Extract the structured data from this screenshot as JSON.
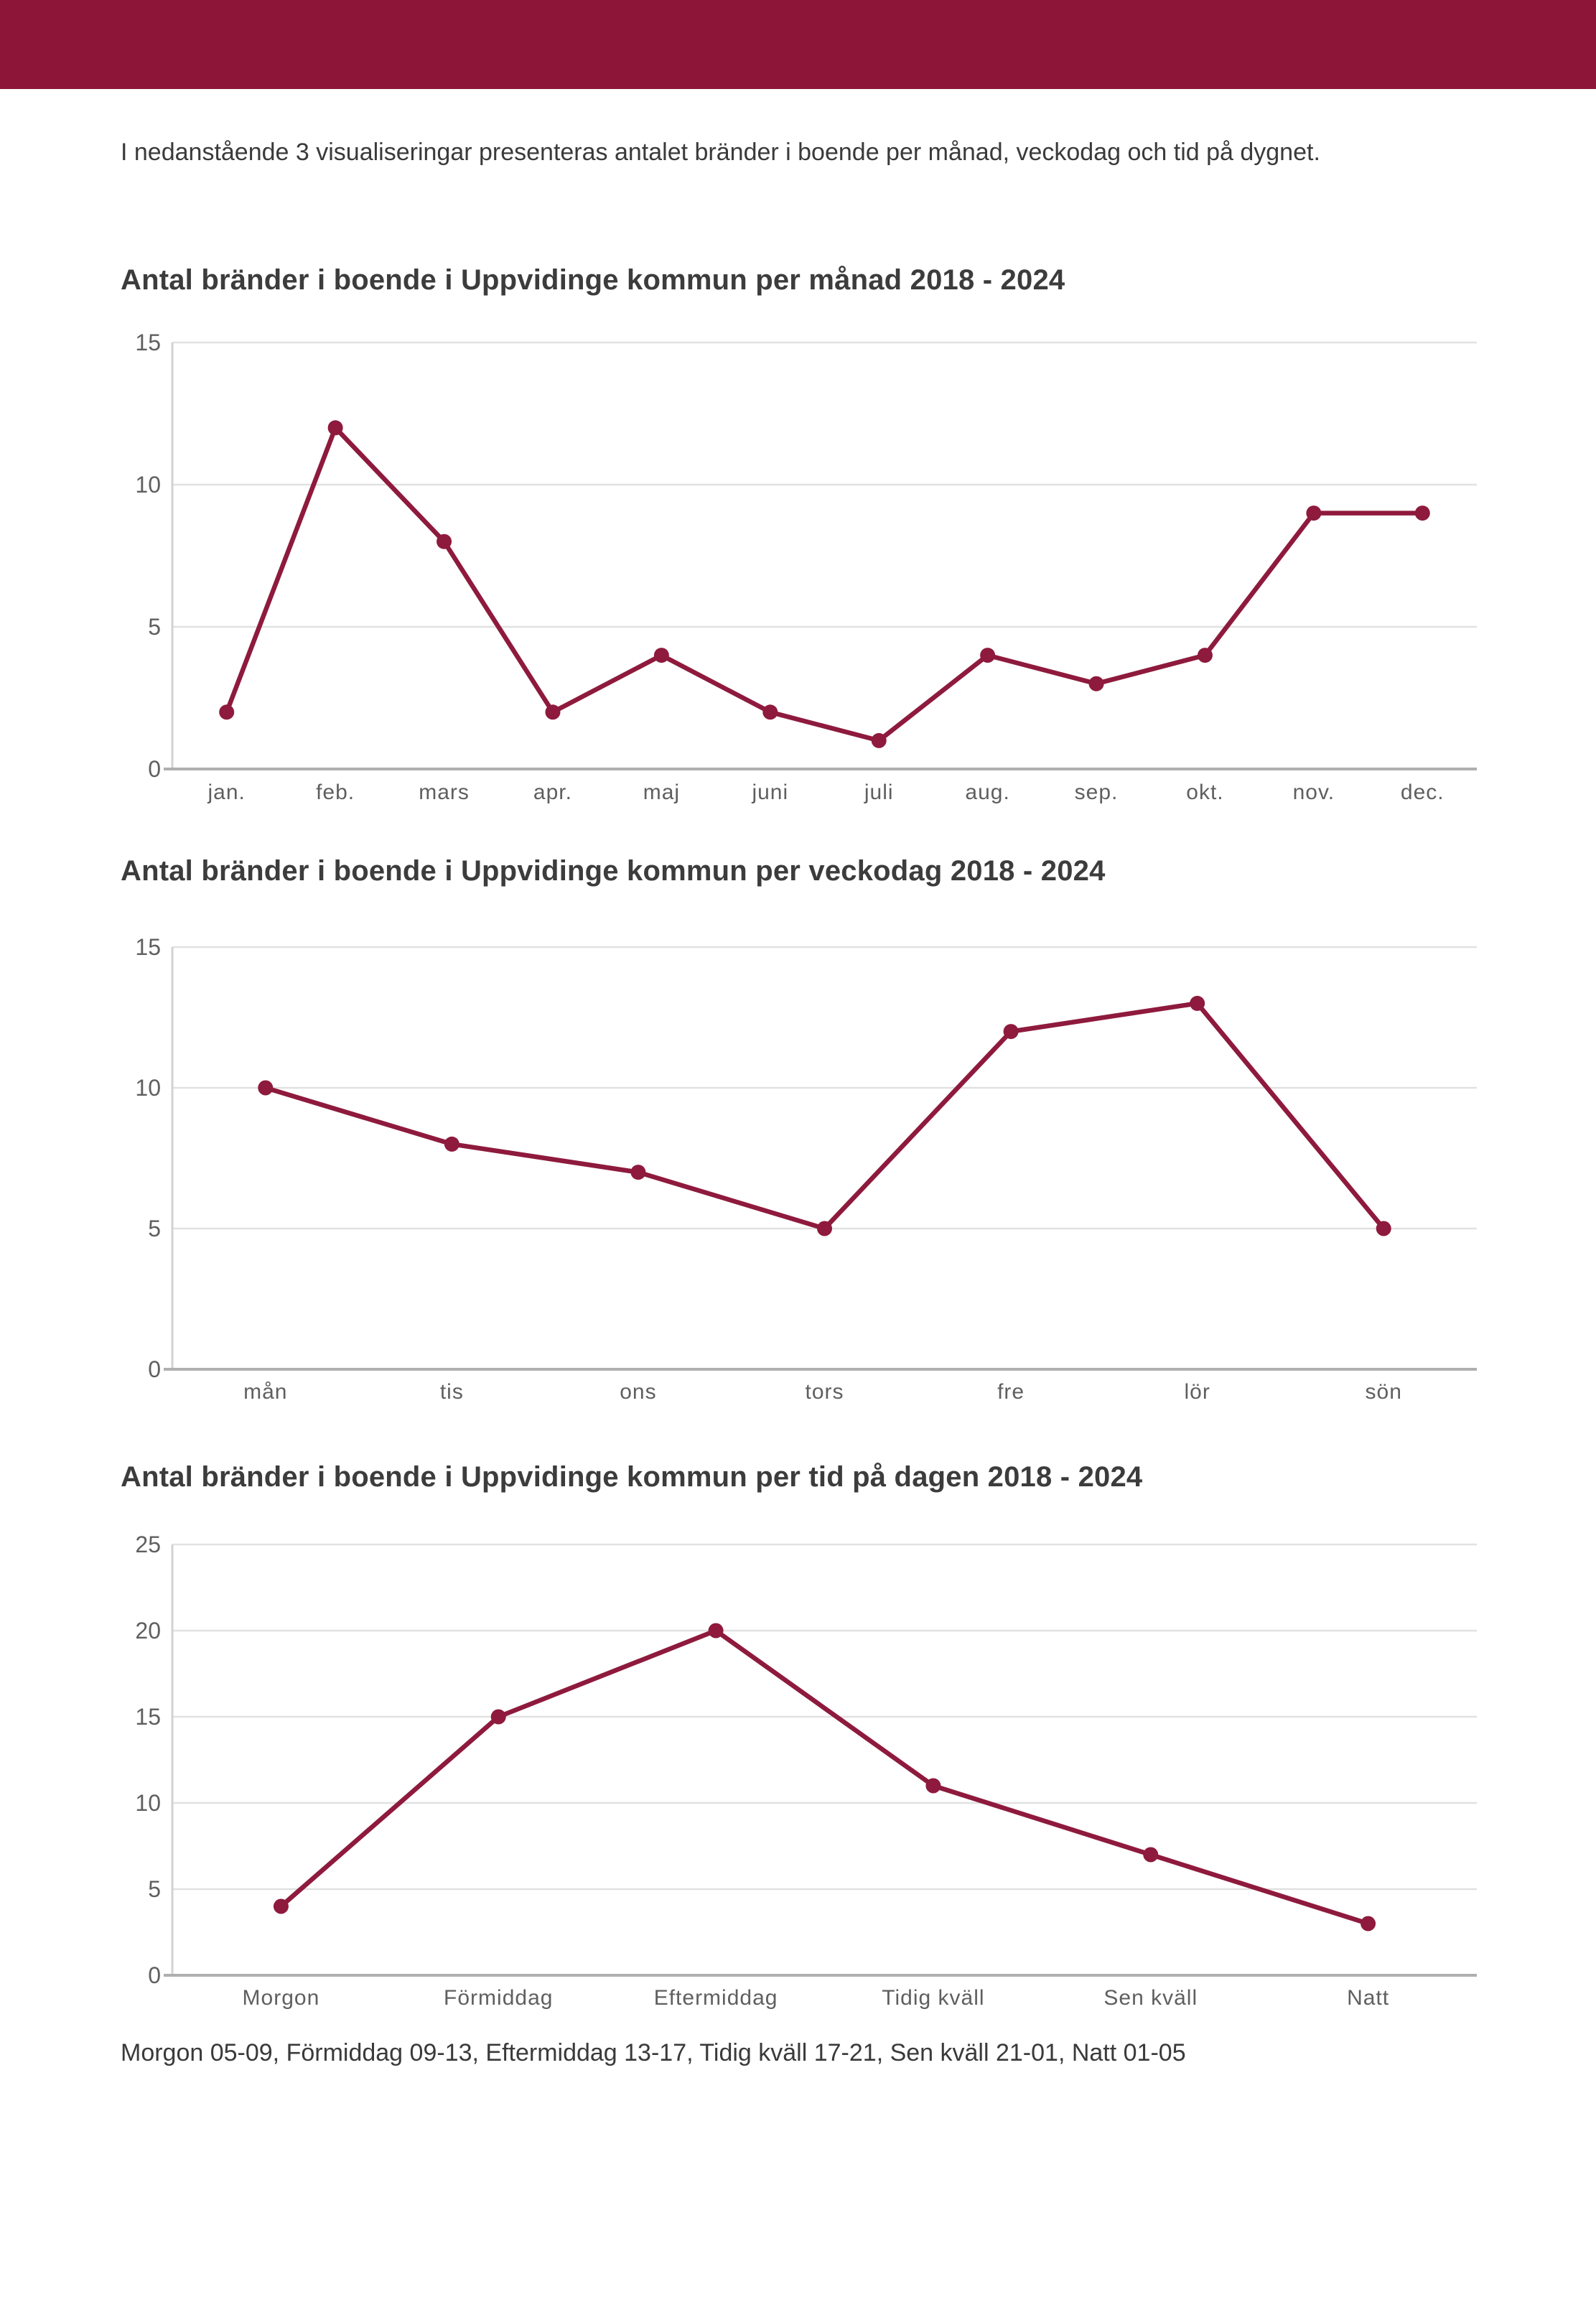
{
  "header": {
    "bar_color": "#8C1538"
  },
  "intro": {
    "text": "I nedanstående 3 visualiseringar presenteras antalet bränder i boende per månad, veckodag och tid på dygnet."
  },
  "colors": {
    "accent": "#8E1A3D",
    "header_bar": "#8C1538",
    "grid": "#E1E1E1",
    "axis_bottom": "#AFAFAF",
    "axis_left": "#D2D2D2",
    "tick_label": "#5F5F5F",
    "title": "#3C3C3C",
    "body_text": "#3A3A3A"
  },
  "chart_data": [
    {
      "type": "line",
      "title": "Antal bränder i boende i Uppvidinge kommun per månad 2018 - 2024",
      "categories": [
        "jan.",
        "feb.",
        "mars",
        "apr.",
        "maj",
        "juni",
        "juli",
        "aug.",
        "sep.",
        "okt.",
        "nov.",
        "dec."
      ],
      "values": [
        2,
        12,
        8,
        2,
        4,
        2,
        1,
        4,
        3,
        4,
        9,
        9
      ],
      "xlabel": "",
      "ylabel": "",
      "ylim": [
        0,
        15
      ],
      "yticks": [
        0,
        5,
        10,
        15
      ],
      "grid": true,
      "legend": "none",
      "marker": "circle"
    },
    {
      "type": "line",
      "title": "Antal bränder i boende i Uppvidinge kommun per veckodag 2018 - 2024",
      "categories": [
        "mån",
        "tis",
        "ons",
        "tors",
        "fre",
        "lör",
        "sön"
      ],
      "values": [
        10,
        8,
        7,
        5,
        12,
        13,
        5
      ],
      "xlabel": "",
      "ylabel": "",
      "ylim": [
        0,
        15
      ],
      "yticks": [
        0,
        5,
        10,
        15
      ],
      "grid": true,
      "legend": "none",
      "marker": "circle"
    },
    {
      "type": "line",
      "title": "Antal bränder i boende i Uppvidinge kommun per tid på dagen 2018 - 2024",
      "categories": [
        "Morgon",
        "Förmiddag",
        "Eftermiddag",
        "Tidig kväll",
        "Sen kväll",
        "Natt"
      ],
      "values": [
        4,
        15,
        20,
        11,
        7,
        3
      ],
      "xlabel": "",
      "ylabel": "",
      "ylim": [
        0,
        25
      ],
      "yticks": [
        0,
        5,
        10,
        15,
        20,
        25
      ],
      "grid": true,
      "legend": "none",
      "marker": "circle"
    }
  ],
  "footer": {
    "text": "Morgon 05-09, Förmiddag 09-13, Eftermiddag 13-17, Tidig kväll 17-21, Sen kväll 21-01, Natt 01-05"
  }
}
